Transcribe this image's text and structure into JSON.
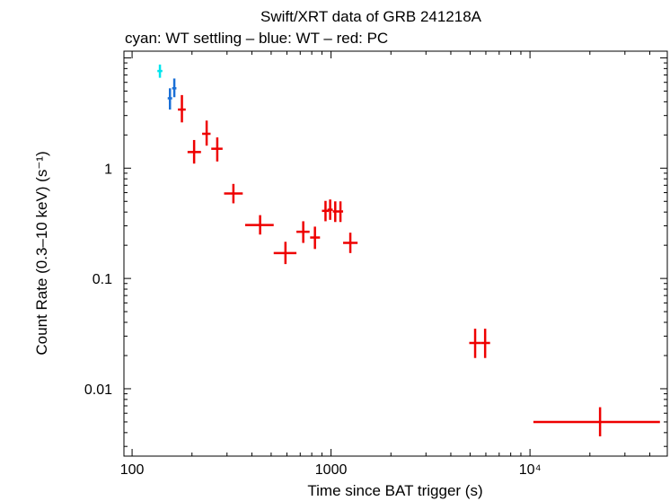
{
  "chart_data": {
    "type": "scatter",
    "title": "Swift/XRT data of GRB 241218A",
    "subtitle": "cyan: WT settling – blue: WT – red: PC",
    "xlabel": "Time since BAT trigger (s)",
    "ylabel": "Count Rate (0.3–10 keV) (s⁻¹)",
    "xscale": "log",
    "yscale": "log",
    "xlim": [
      91,
      49000
    ],
    "ylim": [
      0.00245,
      11.5
    ],
    "x_tick_labels": [
      "100",
      "1000",
      "10⁴"
    ],
    "x_tick_values": [
      100,
      1000,
      10000
    ],
    "y_tick_labels": [
      "0.01",
      "0.1",
      "1"
    ],
    "y_tick_values": [
      0.01,
      0.1,
      1
    ],
    "series": [
      {
        "name": "WT settling",
        "color": "#00e5ee",
        "points": [
          {
            "x": 138,
            "xlo": 134,
            "xhi": 142,
            "y": 7.6,
            "ylo": 6.6,
            "yhi": 8.7
          }
        ]
      },
      {
        "name": "WT",
        "color": "#1a6fd6",
        "points": [
          {
            "x": 155,
            "xlo": 151,
            "xhi": 159,
            "y": 4.3,
            "ylo": 3.4,
            "yhi": 5.3
          },
          {
            "x": 163,
            "xlo": 159,
            "xhi": 167,
            "y": 5.3,
            "ylo": 4.4,
            "yhi": 6.5
          }
        ]
      },
      {
        "name": "PC",
        "color": "#ee0000",
        "points": [
          {
            "x": 178,
            "xlo": 170,
            "xhi": 186,
            "y": 3.4,
            "ylo": 2.6,
            "yhi": 4.6
          },
          {
            "x": 205,
            "xlo": 190,
            "xhi": 222,
            "y": 1.4,
            "ylo": 1.1,
            "yhi": 1.8
          },
          {
            "x": 237,
            "xlo": 225,
            "xhi": 248,
            "y": 2.05,
            "ylo": 1.6,
            "yhi": 2.7
          },
          {
            "x": 268,
            "xlo": 250,
            "xhi": 285,
            "y": 1.5,
            "ylo": 1.15,
            "yhi": 1.9
          },
          {
            "x": 323,
            "xlo": 290,
            "xhi": 360,
            "y": 0.59,
            "ylo": 0.48,
            "yhi": 0.72
          },
          {
            "x": 440,
            "xlo": 370,
            "xhi": 515,
            "y": 0.305,
            "ylo": 0.25,
            "yhi": 0.375
          },
          {
            "x": 590,
            "xlo": 515,
            "xhi": 670,
            "y": 0.17,
            "ylo": 0.135,
            "yhi": 0.215
          },
          {
            "x": 725,
            "xlo": 670,
            "xhi": 780,
            "y": 0.265,
            "ylo": 0.21,
            "yhi": 0.33
          },
          {
            "x": 830,
            "xlo": 785,
            "xhi": 880,
            "y": 0.235,
            "ylo": 0.185,
            "yhi": 0.295
          },
          {
            "x": 938,
            "xlo": 900,
            "xhi": 975,
            "y": 0.41,
            "ylo": 0.33,
            "yhi": 0.505
          },
          {
            "x": 990,
            "xlo": 960,
            "xhi": 1020,
            "y": 0.42,
            "ylo": 0.34,
            "yhi": 0.52
          },
          {
            "x": 1050,
            "xlo": 1020,
            "xhi": 1080,
            "y": 0.405,
            "ylo": 0.325,
            "yhi": 0.5
          },
          {
            "x": 1115,
            "xlo": 1080,
            "xhi": 1150,
            "y": 0.405,
            "ylo": 0.325,
            "yhi": 0.5
          },
          {
            "x": 1250,
            "xlo": 1150,
            "xhi": 1360,
            "y": 0.21,
            "ylo": 0.17,
            "yhi": 0.26
          },
          {
            "x": 5300,
            "xlo": 4950,
            "xhi": 5650,
            "y": 0.026,
            "ylo": 0.019,
            "yhi": 0.035
          },
          {
            "x": 5950,
            "xlo": 5650,
            "xhi": 6300,
            "y": 0.026,
            "ylo": 0.019,
            "yhi": 0.035
          },
          {
            "x": 22500,
            "xlo": 10400,
            "xhi": 45000,
            "y": 0.005,
            "ylo": 0.0037,
            "yhi": 0.0068
          }
        ]
      }
    ]
  }
}
